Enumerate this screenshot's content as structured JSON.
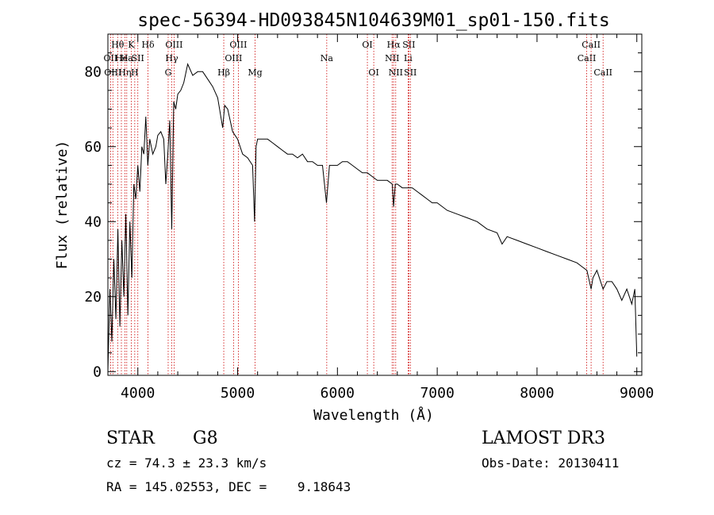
{
  "chart_data": {
    "type": "line",
    "title": "spec-56394-HD093845N104639M01_sp01-150.fits",
    "xlabel": "Wavelength (Å)",
    "ylabel": "Flux (relative)",
    "xlim": [
      3700,
      9050
    ],
    "ylim": [
      -1,
      90
    ],
    "x_ticks": [
      4000,
      5000,
      6000,
      7000,
      8000,
      9000
    ],
    "y_ticks": [
      0,
      20,
      40,
      60,
      80
    ],
    "grid": false,
    "series": [
      {
        "x": [
          3700,
          3720,
          3740,
          3760,
          3780,
          3800,
          3820,
          3840,
          3860,
          3880,
          3900,
          3920,
          3940,
          3960,
          3980,
          4000,
          4020,
          4040,
          4060,
          4080,
          4100,
          4120,
          4150,
          4180,
          4200,
          4230,
          4260,
          4280,
          4300,
          4320,
          4340,
          4360,
          4380,
          4400,
          4430,
          4460,
          4500,
          4550,
          4600,
          4650,
          4700,
          4750,
          4800,
          4850,
          4870,
          4900,
          4950,
          5000,
          5050,
          5100,
          5150,
          5170,
          5185,
          5200,
          5250,
          5300,
          5350,
          5400,
          5450,
          5500,
          5550,
          5600,
          5650,
          5700,
          5750,
          5800,
          5850,
          5890,
          5920,
          5950,
          6000,
          6050,
          6100,
          6150,
          6200,
          6250,
          6300,
          6350,
          6400,
          6450,
          6500,
          6550,
          6563,
          6580,
          6600,
          6650,
          6700,
          6750,
          6800,
          6850,
          6900,
          6950,
          7000,
          7100,
          7200,
          7300,
          7400,
          7500,
          7600,
          7650,
          7700,
          7800,
          7900,
          8000,
          8100,
          8200,
          8300,
          8400,
          8450,
          8500,
          8542,
          8560,
          8600,
          8662,
          8700,
          8750,
          8800,
          8850,
          8900,
          8950,
          8980,
          9000
        ],
        "values": [
          0,
          22,
          8,
          30,
          14,
          38,
          12,
          35,
          20,
          42,
          15,
          40,
          25,
          50,
          46,
          55,
          48,
          60,
          58,
          68,
          55,
          62,
          58,
          60,
          63,
          64,
          62,
          50,
          58,
          67,
          38,
          72,
          70,
          74,
          75,
          77,
          82,
          79,
          80,
          80,
          78,
          76,
          73,
          65,
          71,
          70,
          64,
          62,
          58,
          57,
          55,
          40,
          60,
          62,
          62,
          62,
          61,
          60,
          59,
          58,
          58,
          57,
          58,
          56,
          56,
          55,
          55,
          45,
          55,
          55,
          55,
          56,
          56,
          55,
          54,
          53,
          53,
          52,
          51,
          51,
          51,
          50,
          44,
          50,
          50,
          49,
          49,
          49,
          48,
          47,
          46,
          45,
          45,
          43,
          42,
          41,
          40,
          38,
          37,
          34,
          36,
          35,
          34,
          33,
          32,
          31,
          30,
          29,
          28,
          27,
          22,
          25,
          27,
          22,
          24,
          24,
          22,
          19,
          22,
          18,
          22,
          4
        ]
      }
    ],
    "lines": [
      {
        "wave": 3727,
        "label": "OII",
        "row": 1
      },
      {
        "wave": 3750,
        "label": "OIII",
        "row": 2
      },
      {
        "wave": 3798,
        "label": "Hθ",
        "row": 0
      },
      {
        "wave": 3835,
        "label": "He",
        "row": 1
      },
      {
        "wave": 3870,
        "label": "Hη",
        "row": 2
      },
      {
        "wave": 3889,
        "label": "Ha",
        "row": 1
      },
      {
        "wave": 3934,
        "label": "K",
        "row": 0
      },
      {
        "wave": 3969,
        "label": "H",
        "row": 2
      },
      {
        "wave": 4000,
        "label": "SII",
        "row": 1
      },
      {
        "wave": 4102,
        "label": "Hδ",
        "row": 0
      },
      {
        "wave": 4304,
        "label": "G",
        "row": 2
      },
      {
        "wave": 4340,
        "label": "Hγ",
        "row": 1
      },
      {
        "wave": 4363,
        "label": "OIII",
        "row": 0
      },
      {
        "wave": 4861,
        "label": "Hβ",
        "row": 2
      },
      {
        "wave": 4959,
        "label": "OIII",
        "row": 1
      },
      {
        "wave": 5007,
        "label": "OIII",
        "row": 0
      },
      {
        "wave": 5175,
        "label": "Mg",
        "row": 2
      },
      {
        "wave": 5893,
        "label": "Na",
        "row": 1
      },
      {
        "wave": 6300,
        "label": "OI",
        "row": 0
      },
      {
        "wave": 6364,
        "label": "OI",
        "row": 2
      },
      {
        "wave": 6548,
        "label": "NII",
        "row": 1
      },
      {
        "wave": 6563,
        "label": "Hα",
        "row": 0
      },
      {
        "wave": 6584,
        "label": "NII",
        "row": 2
      },
      {
        "wave": 6708,
        "label": "Li",
        "row": 1
      },
      {
        "wave": 6716,
        "label": "SII",
        "row": 0
      },
      {
        "wave": 6731,
        "label": "SII",
        "row": 2
      },
      {
        "wave": 8498,
        "label": "CaII",
        "row": 1
      },
      {
        "wave": 8542,
        "label": "CaII",
        "row": 0
      },
      {
        "wave": 8662,
        "label": "CaII",
        "row": 2
      }
    ]
  },
  "info": {
    "class": "STAR",
    "subclass": "G8",
    "survey": "LAMOST DR3",
    "cz": "cz = 74.3 ± 23.3 km/s",
    "obs_date": "Obs-Date: 20130411",
    "radec": "RA = 145.02553, DEC =    9.18643"
  },
  "colors": {
    "spectrum": "#000000",
    "line_marker": "#cc0000",
    "axes": "#000000"
  }
}
